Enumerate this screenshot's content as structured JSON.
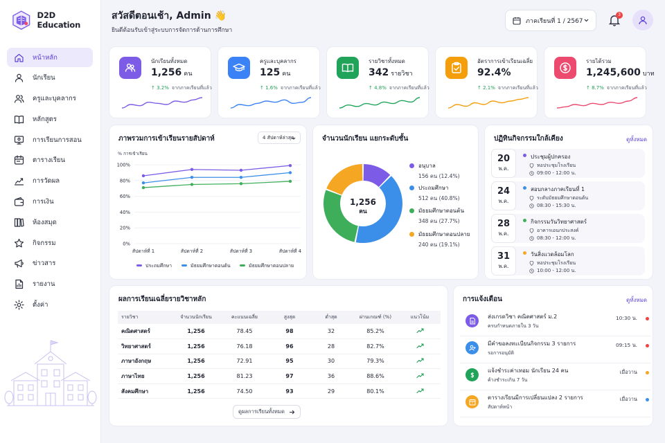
{
  "app": {
    "name": "D2D Education"
  },
  "nav": [
    {
      "label": "หน้าหลัก",
      "icon": "home-icon",
      "active": true
    },
    {
      "label": "นักเรียน",
      "icon": "user-icon"
    },
    {
      "label": "ครูและบุคลากร",
      "icon": "users-icon"
    },
    {
      "label": "หลักสูตร",
      "icon": "book-icon"
    },
    {
      "label": "การเรียนการสอน",
      "icon": "monitor-icon"
    },
    {
      "label": "ตารางเรียน",
      "icon": "calendar-icon"
    },
    {
      "label": "การวัดผล",
      "icon": "chart-icon"
    },
    {
      "label": "การเงิน",
      "icon": "wallet-icon"
    },
    {
      "label": "ห้องสมุด",
      "icon": "library-icon"
    },
    {
      "label": "กิจกรรม",
      "icon": "star-icon"
    },
    {
      "label": "ข่าวสาร",
      "icon": "megaphone-icon"
    },
    {
      "label": "รายงาน",
      "icon": "report-icon"
    },
    {
      "label": "ตั้งค่า",
      "icon": "gear-icon"
    }
  ],
  "header": {
    "greeting": "สวัสดีตอนเช้า, Admin 👋",
    "subtitle": "ยินดีต้อนรับเข้าสู่ระบบการจัดการด้านการศึกษา",
    "term": "ภาคเรียนที่ 1 / 2567",
    "notif_count": "3"
  },
  "stats": [
    {
      "label": "นักเรียนทั้งหมด",
      "value": "1,256",
      "unit": "คน",
      "change": "3.2%",
      "change_text": "จากภาคเรียนที่แล้ว",
      "color": "#7c5ce6",
      "icon": "students-icon",
      "trend": [
        6,
        9,
        8,
        11,
        10,
        9,
        12,
        11,
        13,
        15
      ]
    },
    {
      "label": "ครูและบุคลากร",
      "value": "125",
      "unit": "คน",
      "change": "1.6%",
      "change_text": "จากภาคเรียนที่แล้ว",
      "color": "#3b82f6",
      "icon": "graduation-cap-icon",
      "trend": [
        5,
        8,
        7,
        9,
        11,
        10,
        12,
        9,
        10,
        14
      ]
    },
    {
      "label": "รายวิชาทั้งหมด",
      "value": "342",
      "unit": "รายวิชา",
      "change": "4.8%",
      "change_text": "จากภาคเรียนที่แล้ว",
      "color": "#22a35a",
      "icon": "open-book-icon",
      "trend": [
        5,
        7,
        6,
        8,
        7,
        9,
        8,
        10,
        9,
        12
      ]
    },
    {
      "label": "อัตราการเข้าเรียนเฉลี่ย",
      "value": "92.4%",
      "unit": "",
      "change": "2.1%",
      "change_text": "จากภาคเรียนที่แล้ว",
      "color": "#f59e0b",
      "icon": "clipboard-check-icon",
      "trend": [
        7,
        9,
        8,
        10,
        9,
        11,
        10,
        11,
        12,
        13
      ]
    },
    {
      "label": "รายได้รวม",
      "value": "1,245,600",
      "unit": "บาท",
      "change": "8.7%",
      "change_text": "จากภาคเรียนที่แล้ว",
      "color": "#ec4a6f",
      "icon": "coin-icon",
      "trend": [
        5,
        6,
        8,
        7,
        9,
        8,
        10,
        9,
        11,
        14
      ]
    }
  ],
  "attendance": {
    "title": "ภาพรวมการเข้าเรียนรายสัปดาห์",
    "filter": "4 สัปดาห์ล่าสุด",
    "chart_data": {
      "type": "line",
      "ylabel": "% การเข้าเรียน",
      "x": [
        "สัปดาห์ที่ 1",
        "สัปดาห์ที่ 2",
        "สัปดาห์ที่ 3",
        "สัปดาห์ที่ 4"
      ],
      "yticks": [
        "0%",
        "20%",
        "40%",
        "60%",
        "80%",
        "100%"
      ],
      "ylim": [
        0,
        100
      ],
      "grid": true,
      "legend": "bottom",
      "series": [
        {
          "name": "ประถมศึกษา",
          "color": "#7c5ce6",
          "values": [
            86,
            94,
            93,
            99
          ]
        },
        {
          "name": "มัธยมศึกษาตอนต้น",
          "color": "#3b8fe8",
          "values": [
            77,
            84,
            84,
            90
          ]
        },
        {
          "name": "มัธยมศึกษาตอนปลาย",
          "color": "#3fae5a",
          "values": [
            71,
            75,
            76,
            79
          ]
        }
      ]
    }
  },
  "levels": {
    "title": "จำนวนนักเรียน แยกระดับชั้น",
    "center_value": "1,256",
    "center_unit": "คน",
    "chart_data": {
      "type": "pie",
      "categories": [
        "อนุบาล",
        "ประถมศึกษา",
        "มัธยมศึกษาตอนต้น",
        "มัธยมศึกษาตอนปลาย"
      ],
      "values": [
        156,
        512,
        348,
        240
      ],
      "percent": [
        12.4,
        40.8,
        27.7,
        19.1
      ],
      "colors": [
        "#7c5ce6",
        "#3b8fe8",
        "#3fae5a",
        "#f5a623"
      ],
      "legend": "right",
      "details": [
        "156 คน (12.4%)",
        "512 คน (40.8%)",
        "348 คน (27.7%)",
        "240 คน (19.1%)"
      ]
    }
  },
  "activities": {
    "title": "ปฏิทินกิจกรรมใกล้เคียง",
    "view_all": "ดูทั้งหมด",
    "items": [
      {
        "day": "20",
        "month": "พ.ค.",
        "title": "ประชุมผู้ปกครอง",
        "location": "หอประชุมโรงเรียน",
        "time": "09:00 - 12:00 น.",
        "color": "#7c5ce6"
      },
      {
        "day": "24",
        "month": "พ.ค.",
        "title": "สอบกลางภาคเรียนที่ 1",
        "location": "ระดับมัธยมศึกษาตอนต้น",
        "time": "08:30 - 15:30 น.",
        "color": "#3b8fe8"
      },
      {
        "day": "28",
        "month": "พ.ค.",
        "title": "กิจกรรมวันวิทยาศาสตร์",
        "location": "อาคารเอนกประสงค์",
        "time": "08:30 - 12:00 น.",
        "color": "#3fae5a"
      },
      {
        "day": "31",
        "month": "พ.ค.",
        "title": "วันสิ่งแวดล้อมโลก",
        "title_full": "วันสิ่งแวดล้อมโลก",
        "location": "หอประชุมโรงเรียน",
        "time": "10:00 - 12:00 น.",
        "color": "#f5a623"
      }
    ]
  },
  "results": {
    "title": "ผลการเรียนเฉลี่ยรายวิชาหลัก",
    "columns": [
      "รายวิชา",
      "จำนวนนักเรียน",
      "คะแนนเฉลี่ย",
      "สูงสุด",
      "ต่ำสุด",
      "ผ่านเกณฑ์ (%)",
      "แนวโน้ม"
    ],
    "rows": [
      [
        "คณิตศาสตร์",
        "1,256",
        "78.45",
        "98",
        "32",
        "85.2%"
      ],
      [
        "วิทยาศาสตร์",
        "1,256",
        "76.18",
        "96",
        "28",
        "82.7%"
      ],
      [
        "ภาษาอังกฤษ",
        "1,256",
        "72.91",
        "95",
        "30",
        "79.3%"
      ],
      [
        "ภาษาไทย",
        "1,256",
        "81.23",
        "97",
        "36",
        "88.6%"
      ],
      [
        "สังคมศึกษา",
        "1,256",
        "74.50",
        "93",
        "29",
        "80.1%"
      ]
    ],
    "view_all": "ดูผลการเรียนทั้งหมด"
  },
  "notifications": {
    "title": "การแจ้งเตือน",
    "view_all": "ดูทั้งหมด",
    "items": [
      {
        "title": "ส่งเกรดวิชา คณิตศาสตร์ ม.2",
        "sub": "ครบกำหนดภายใน 3 วัน",
        "time": "10:30 น.",
        "color": "#7c5ce6",
        "dot": "#ef4444",
        "icon": "document-icon"
      },
      {
        "title": "มีคำขอลงทะเบียนกิจกรรม 3 รายการ",
        "sub": "รอการอนุมัติ",
        "time": "09:15 น.",
        "color": "#3b8fe8",
        "dot": "#ef4444",
        "icon": "user-add-icon"
      },
      {
        "title": "แจ้งชำระค่าเทอม นักเรียน 24 คน",
        "sub": "ค้างชำระเกิน 7 วัน",
        "time": "เมื่อวาน",
        "color": "#22a35a",
        "dot": "#f5a623",
        "icon": "dollar-icon"
      },
      {
        "title": "ตารางเรียนมีการเปลี่ยนแปลง 2 รายการ",
        "sub": "สัปดาห์หน้า",
        "time": "เมื่อวาน",
        "color": "#f5a623",
        "dot": "#3b8fe8",
        "icon": "calendar-alert-icon"
      }
    ]
  }
}
